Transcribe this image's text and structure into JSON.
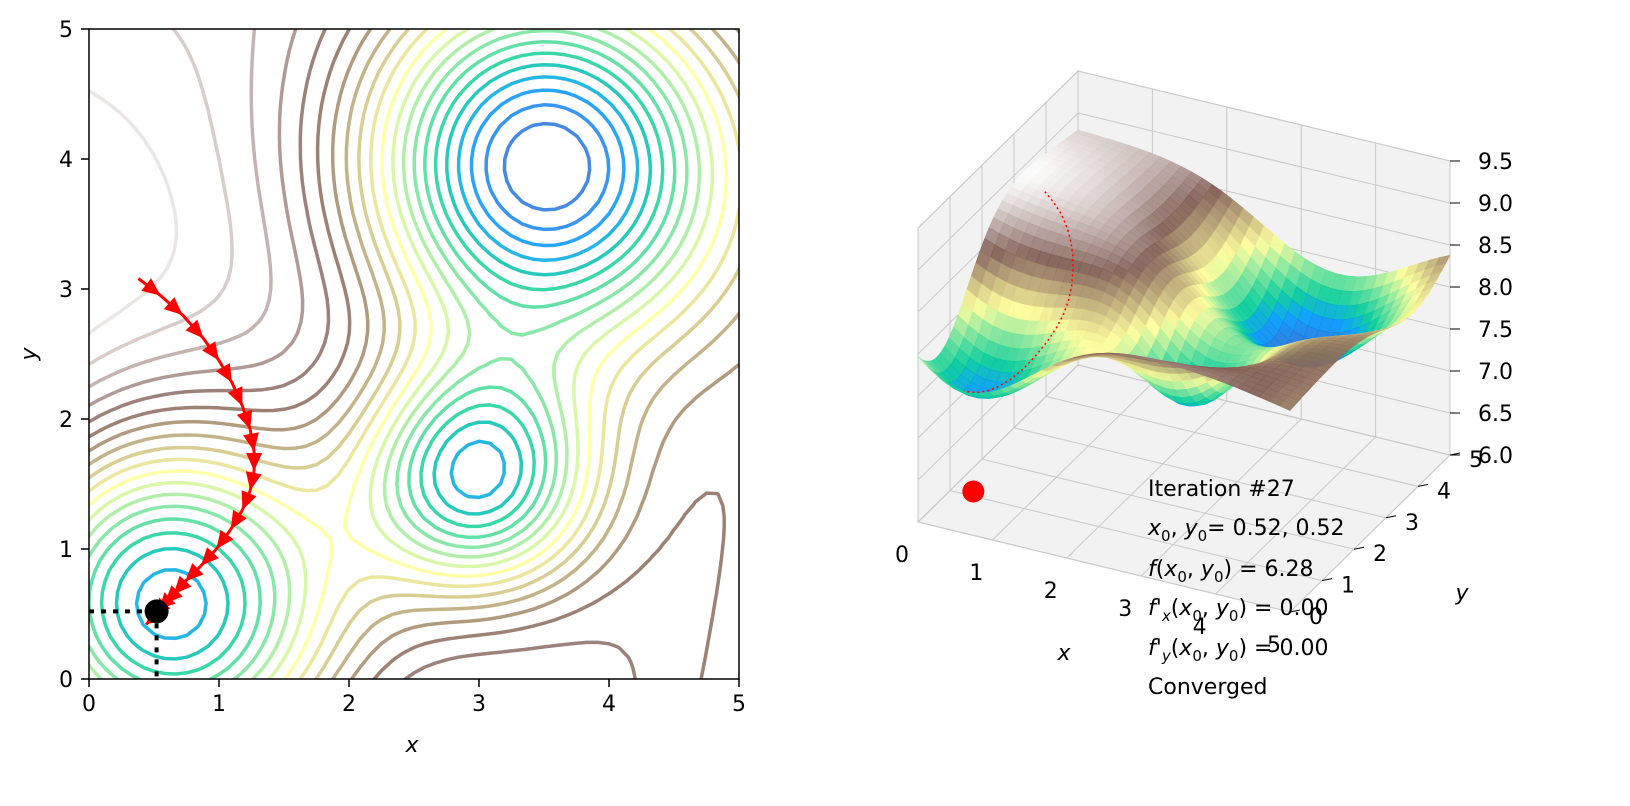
{
  "chart_data": [
    {
      "type": "contour",
      "xlabel": "x",
      "ylabel": "y",
      "xlim": [
        0,
        5
      ],
      "ylim": [
        0,
        5
      ],
      "xticks": [
        "0",
        "1",
        "2",
        "3",
        "4",
        "5"
      ],
      "yticks": [
        "0",
        "1",
        "2",
        "3",
        "4",
        "5"
      ],
      "colormap": "terrain",
      "minima": [
        {
          "x": 0.52,
          "y": 0.52
        },
        {
          "x": 2.98,
          "y": 1.55
        },
        {
          "x": 3.48,
          "y": 3.95
        }
      ],
      "current_point": {
        "x": 0.52,
        "y": 0.52
      },
      "descent_path": [
        [
          0.38,
          3.08
        ],
        [
          0.55,
          2.95
        ],
        [
          0.72,
          2.8
        ],
        [
          0.88,
          2.62
        ],
        [
          1.0,
          2.45
        ],
        [
          1.1,
          2.28
        ],
        [
          1.18,
          2.1
        ],
        [
          1.24,
          1.92
        ],
        [
          1.27,
          1.75
        ],
        [
          1.27,
          1.6
        ],
        [
          1.24,
          1.45
        ],
        [
          1.18,
          1.3
        ],
        [
          1.09,
          1.15
        ],
        [
          0.98,
          1.0
        ],
        [
          0.86,
          0.87
        ],
        [
          0.74,
          0.75
        ],
        [
          0.65,
          0.65
        ],
        [
          0.58,
          0.58
        ],
        [
          0.54,
          0.54
        ],
        [
          0.52,
          0.52
        ],
        [
          0.47,
          0.45
        ],
        [
          0.44,
          0.42
        ]
      ],
      "colors": {
        "path": "#ff0000",
        "point": "#000000",
        "guide": "#000000"
      }
    },
    {
      "type": "surface3d",
      "xlabel": "x",
      "ylabel": "y",
      "xlim": [
        0,
        5
      ],
      "ylim": [
        0,
        5
      ],
      "zlim": [
        6.0,
        9.5
      ],
      "xticks": [
        "0",
        "1",
        "2",
        "3",
        "4",
        "5"
      ],
      "yticks": [
        "0",
        "1",
        "2",
        "3",
        "4",
        "5"
      ],
      "zticks": [
        "6.0",
        "6.5",
        "7.0",
        "7.5",
        "8.0",
        "8.5",
        "9.0",
        "9.5"
      ],
      "colormap": "terrain",
      "current_point": {
        "x": 0.52,
        "y": 0.52,
        "z": 6.28
      },
      "colors": {
        "path": "#ff0000"
      }
    }
  ],
  "info": {
    "iteration": "Iteration #27",
    "x0y0_label": "x",
    "x0y0_value": "= 0.52, 0.52",
    "f_value": "= 6.28",
    "fx_value": "= 0.00",
    "fy_value": "= 0.00",
    "status": "Converged"
  }
}
